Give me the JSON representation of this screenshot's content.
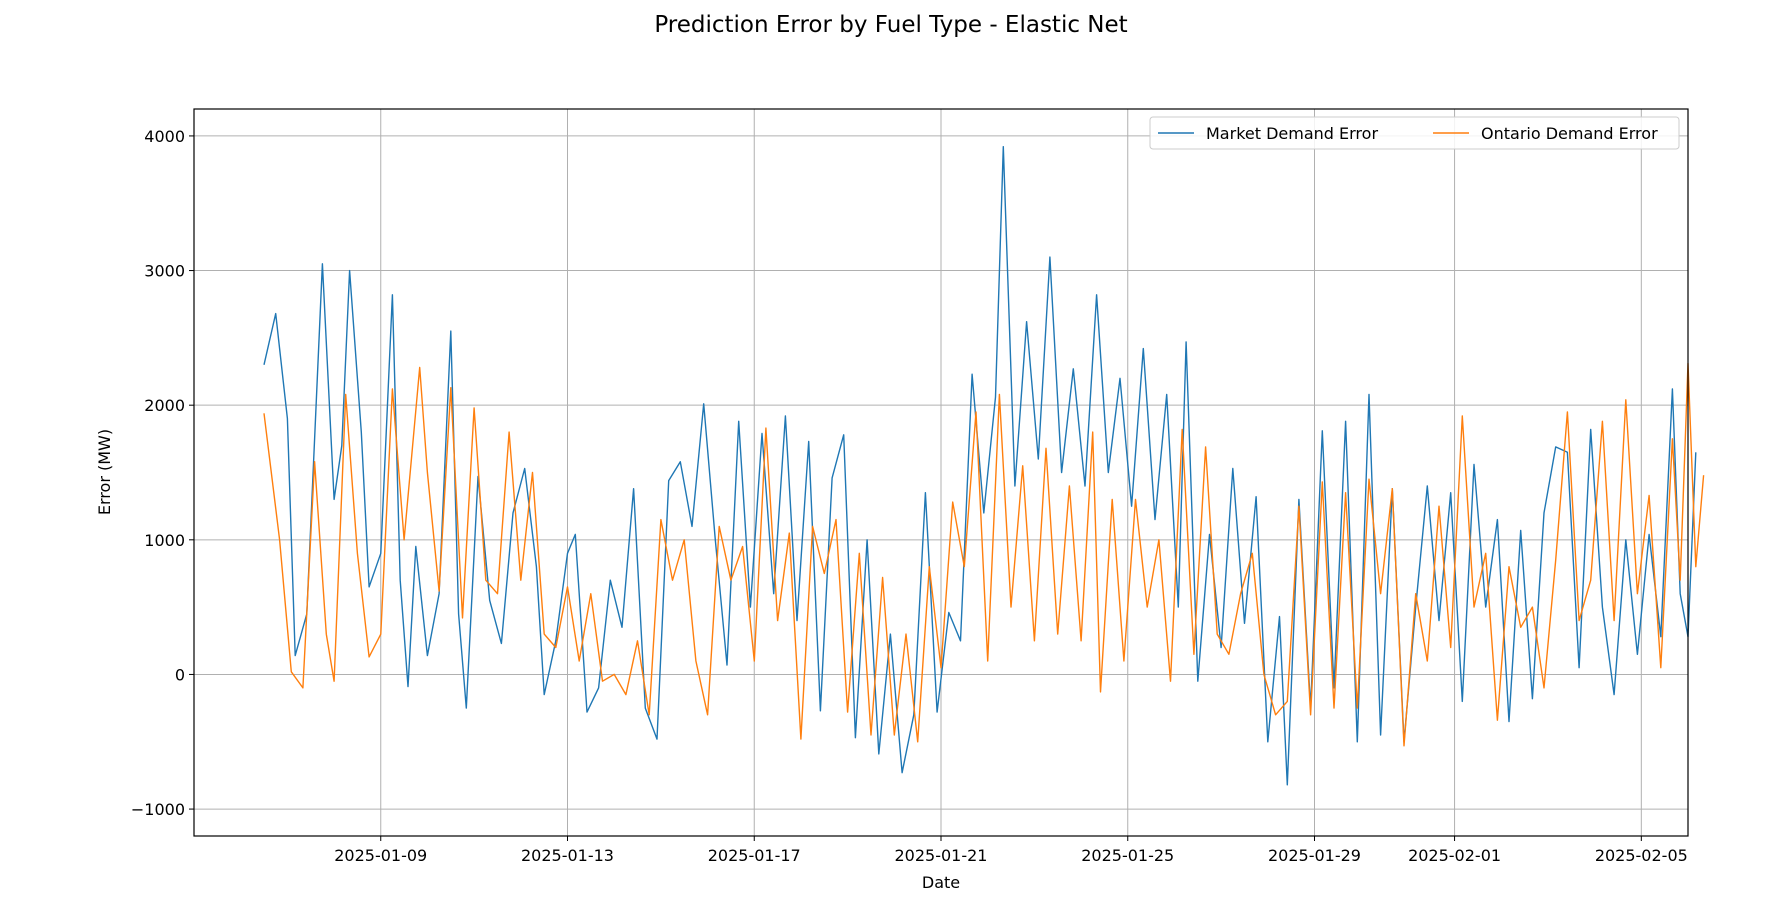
{
  "chart_data": {
    "type": "line",
    "title": "Prediction Error by Fuel Type - Elastic Net",
    "xlabel": "Date",
    "ylabel": "Error (MW)",
    "x_range": [
      "2025-01-05",
      "2025-02-06"
    ],
    "ylim": [
      -1000,
      4000
    ],
    "y_ticks": [
      -1000,
      0,
      1000,
      2000,
      3000,
      4000
    ],
    "x_ticks": [
      "2025-01-09",
      "2025-01-13",
      "2025-01-17",
      "2025-01-21",
      "2025-01-25",
      "2025-01-29",
      "2025-02-01",
      "2025-02-05"
    ],
    "grid": true,
    "legend": "top-right",
    "series": [
      {
        "name": "Market Demand Error",
        "color": "#1f77b4",
        "points": [
          [
            "2025-01-06 12:00",
            2300
          ],
          [
            "2025-01-06 18:00",
            2680
          ],
          [
            "2025-01-07 00:00",
            1900
          ],
          [
            "2025-01-07 04:00",
            140
          ],
          [
            "2025-01-07 10:00",
            450
          ],
          [
            "2025-01-07 18:00",
            3050
          ],
          [
            "2025-01-08 00:00",
            1300
          ],
          [
            "2025-01-08 04:00",
            1700
          ],
          [
            "2025-01-08 08:00",
            3000
          ],
          [
            "2025-01-08 14:00",
            1800
          ],
          [
            "2025-01-08 18:00",
            650
          ],
          [
            "2025-01-09 00:00",
            900
          ],
          [
            "2025-01-09 06:00",
            2820
          ],
          [
            "2025-01-09 10:00",
            700
          ],
          [
            "2025-01-09 14:00",
            -90
          ],
          [
            "2025-01-09 18:00",
            950
          ],
          [
            "2025-01-10 00:00",
            140
          ],
          [
            "2025-01-10 06:00",
            600
          ],
          [
            "2025-01-10 12:00",
            2550
          ],
          [
            "2025-01-10 16:00",
            450
          ],
          [
            "2025-01-10 20:00",
            -250
          ],
          [
            "2025-01-11 02:00",
            1470
          ],
          [
            "2025-01-11 08:00",
            550
          ],
          [
            "2025-01-11 14:00",
            230
          ],
          [
            "2025-01-11 20:00",
            1200
          ],
          [
            "2025-01-12 02:00",
            1530
          ],
          [
            "2025-01-12 08:00",
            800
          ],
          [
            "2025-01-12 12:00",
            -150
          ],
          [
            "2025-01-12 18:00",
            250
          ],
          [
            "2025-01-13 00:00",
            900
          ],
          [
            "2025-01-13 04:00",
            1040
          ],
          [
            "2025-01-13 10:00",
            -280
          ],
          [
            "2025-01-13 16:00",
            -100
          ],
          [
            "2025-01-13 22:00",
            700
          ],
          [
            "2025-01-14 04:00",
            350
          ],
          [
            "2025-01-14 10:00",
            1380
          ],
          [
            "2025-01-14 16:00",
            -250
          ],
          [
            "2025-01-14 22:00",
            -480
          ],
          [
            "2025-01-15 04:00",
            1440
          ],
          [
            "2025-01-15 10:00",
            1580
          ],
          [
            "2025-01-15 16:00",
            1100
          ],
          [
            "2025-01-15 22:00",
            2010
          ],
          [
            "2025-01-16 04:00",
            1000
          ],
          [
            "2025-01-16 10:00",
            70
          ],
          [
            "2025-01-16 16:00",
            1880
          ],
          [
            "2025-01-16 22:00",
            500
          ],
          [
            "2025-01-17 04:00",
            1790
          ],
          [
            "2025-01-17 10:00",
            600
          ],
          [
            "2025-01-17 16:00",
            1920
          ],
          [
            "2025-01-17 22:00",
            400
          ],
          [
            "2025-01-18 04:00",
            1730
          ],
          [
            "2025-01-18 10:00",
            -270
          ],
          [
            "2025-01-18 16:00",
            1460
          ],
          [
            "2025-01-18 22:00",
            1780
          ],
          [
            "2025-01-19 04:00",
            -470
          ],
          [
            "2025-01-19 10:00",
            1000
          ],
          [
            "2025-01-19 16:00",
            -590
          ],
          [
            "2025-01-19 22:00",
            300
          ],
          [
            "2025-01-20 04:00",
            -730
          ],
          [
            "2025-01-20 10:00",
            -300
          ],
          [
            "2025-01-20 16:00",
            1350
          ],
          [
            "2025-01-20 22:00",
            -280
          ],
          [
            "2025-01-21 04:00",
            460
          ],
          [
            "2025-01-21 10:00",
            250
          ],
          [
            "2025-01-21 16:00",
            2230
          ],
          [
            "2025-01-21 22:00",
            1200
          ],
          [
            "2025-01-22 04:00",
            2060
          ],
          [
            "2025-01-22 08:00",
            3920
          ],
          [
            "2025-01-22 14:00",
            1400
          ],
          [
            "2025-01-22 20:00",
            2620
          ],
          [
            "2025-01-23 02:00",
            1600
          ],
          [
            "2025-01-23 08:00",
            3100
          ],
          [
            "2025-01-23 14:00",
            1500
          ],
          [
            "2025-01-23 20:00",
            2270
          ],
          [
            "2025-01-24 02:00",
            1400
          ],
          [
            "2025-01-24 08:00",
            2820
          ],
          [
            "2025-01-24 14:00",
            1500
          ],
          [
            "2025-01-24 20:00",
            2200
          ],
          [
            "2025-01-25 02:00",
            1250
          ],
          [
            "2025-01-25 08:00",
            2420
          ],
          [
            "2025-01-25 14:00",
            1150
          ],
          [
            "2025-01-25 20:00",
            2080
          ],
          [
            "2025-01-26 02:00",
            500
          ],
          [
            "2025-01-26 06:00",
            2470
          ],
          [
            "2025-01-26 12:00",
            -50
          ],
          [
            "2025-01-26 18:00",
            1040
          ],
          [
            "2025-01-27 00:00",
            200
          ],
          [
            "2025-01-27 06:00",
            1530
          ],
          [
            "2025-01-27 12:00",
            380
          ],
          [
            "2025-01-27 18:00",
            1320
          ],
          [
            "2025-01-28 00:00",
            -500
          ],
          [
            "2025-01-28 06:00",
            430
          ],
          [
            "2025-01-28 10:00",
            -820
          ],
          [
            "2025-01-28 16:00",
            1300
          ],
          [
            "2025-01-28 22:00",
            -250
          ],
          [
            "2025-01-29 04:00",
            1810
          ],
          [
            "2025-01-29 10:00",
            -100
          ],
          [
            "2025-01-29 16:00",
            1880
          ],
          [
            "2025-01-29 22:00",
            -500
          ],
          [
            "2025-01-30 04:00",
            2080
          ],
          [
            "2025-01-30 10:00",
            -450
          ],
          [
            "2025-01-30 16:00",
            1380
          ],
          [
            "2025-01-30 22:00",
            -500
          ],
          [
            "2025-01-31 04:00",
            500
          ],
          [
            "2025-01-31 10:00",
            1400
          ],
          [
            "2025-01-31 16:00",
            400
          ],
          [
            "2025-01-31 22:00",
            1350
          ],
          [
            "2025-02-01 04:00",
            -200
          ],
          [
            "2025-02-01 10:00",
            1560
          ],
          [
            "2025-02-01 16:00",
            500
          ],
          [
            "2025-02-01 22:00",
            1150
          ],
          [
            "2025-02-02 04:00",
            -350
          ],
          [
            "2025-02-02 10:00",
            1070
          ],
          [
            "2025-02-02 16:00",
            -180
          ],
          [
            "2025-02-02 22:00",
            1200
          ],
          [
            "2025-02-03 04:00",
            1690
          ],
          [
            "2025-02-03 10:00",
            1650
          ],
          [
            "2025-02-03 16:00",
            50
          ],
          [
            "2025-02-03 22:00",
            1820
          ],
          [
            "2025-02-04 04:00",
            500
          ],
          [
            "2025-02-04 10:00",
            -150
          ],
          [
            "2025-02-04 16:00",
            1000
          ],
          [
            "2025-02-04 22:00",
            150
          ],
          [
            "2025-02-05 04:00",
            1040
          ],
          [
            "2025-02-05 10:00",
            280
          ],
          [
            "2025-02-05 16:00",
            2120
          ],
          [
            "2025-02-05 20:00",
            600
          ],
          [
            "2025-02-06 00:00",
            280
          ],
          [
            "2025-02-06 04:00",
            1650
          ]
        ]
      },
      {
        "name": "Ontario Demand Error",
        "color": "#ff7f0e",
        "points": [
          [
            "2025-01-06 12:00",
            1940
          ],
          [
            "2025-01-06 20:00",
            1000
          ],
          [
            "2025-01-07 02:00",
            20
          ],
          [
            "2025-01-07 08:00",
            -100
          ],
          [
            "2025-01-07 14:00",
            1580
          ],
          [
            "2025-01-07 20:00",
            300
          ],
          [
            "2025-01-08 00:00",
            -50
          ],
          [
            "2025-01-08 06:00",
            2080
          ],
          [
            "2025-01-08 12:00",
            900
          ],
          [
            "2025-01-08 18:00",
            130
          ],
          [
            "2025-01-09 00:00",
            300
          ],
          [
            "2025-01-09 06:00",
            2120
          ],
          [
            "2025-01-09 12:00",
            1000
          ],
          [
            "2025-01-09 20:00",
            2280
          ],
          [
            "2025-01-10 00:00",
            1500
          ],
          [
            "2025-01-10 06:00",
            620
          ],
          [
            "2025-01-10 12:00",
            2130
          ],
          [
            "2025-01-10 18:00",
            420
          ],
          [
            "2025-01-11 00:00",
            1980
          ],
          [
            "2025-01-11 06:00",
            700
          ],
          [
            "2025-01-11 12:00",
            600
          ],
          [
            "2025-01-11 18:00",
            1800
          ],
          [
            "2025-01-12 00:00",
            700
          ],
          [
            "2025-01-12 06:00",
            1500
          ],
          [
            "2025-01-12 12:00",
            300
          ],
          [
            "2025-01-12 18:00",
            200
          ],
          [
            "2025-01-13 00:00",
            650
          ],
          [
            "2025-01-13 06:00",
            100
          ],
          [
            "2025-01-13 12:00",
            600
          ],
          [
            "2025-01-13 18:00",
            -50
          ],
          [
            "2025-01-14 00:00",
            0
          ],
          [
            "2025-01-14 06:00",
            -150
          ],
          [
            "2025-01-14 12:00",
            250
          ],
          [
            "2025-01-14 18:00",
            -300
          ],
          [
            "2025-01-15 00:00",
            1150
          ],
          [
            "2025-01-15 06:00",
            700
          ],
          [
            "2025-01-15 12:00",
            1000
          ],
          [
            "2025-01-15 18:00",
            100
          ],
          [
            "2025-01-16 00:00",
            -300
          ],
          [
            "2025-01-16 06:00",
            1100
          ],
          [
            "2025-01-16 12:00",
            700
          ],
          [
            "2025-01-16 18:00",
            950
          ],
          [
            "2025-01-17 00:00",
            100
          ],
          [
            "2025-01-17 06:00",
            1830
          ],
          [
            "2025-01-17 12:00",
            400
          ],
          [
            "2025-01-17 18:00",
            1050
          ],
          [
            "2025-01-18 00:00",
            -480
          ],
          [
            "2025-01-18 06:00",
            1100
          ],
          [
            "2025-01-18 12:00",
            750
          ],
          [
            "2025-01-18 18:00",
            1150
          ],
          [
            "2025-01-19 00:00",
            -280
          ],
          [
            "2025-01-19 06:00",
            900
          ],
          [
            "2025-01-19 12:00",
            -450
          ],
          [
            "2025-01-19 18:00",
            720
          ],
          [
            "2025-01-20 00:00",
            -450
          ],
          [
            "2025-01-20 06:00",
            300
          ],
          [
            "2025-01-20 12:00",
            -500
          ],
          [
            "2025-01-20 18:00",
            800
          ],
          [
            "2025-01-21 00:00",
            50
          ],
          [
            "2025-01-21 06:00",
            1280
          ],
          [
            "2025-01-21 12:00",
            800
          ],
          [
            "2025-01-21 18:00",
            1950
          ],
          [
            "2025-01-22 00:00",
            100
          ],
          [
            "2025-01-22 06:00",
            2080
          ],
          [
            "2025-01-22 12:00",
            500
          ],
          [
            "2025-01-22 18:00",
            1550
          ],
          [
            "2025-01-23 00:00",
            250
          ],
          [
            "2025-01-23 06:00",
            1680
          ],
          [
            "2025-01-23 12:00",
            300
          ],
          [
            "2025-01-23 18:00",
            1400
          ],
          [
            "2025-01-24 00:00",
            250
          ],
          [
            "2025-01-24 06:00",
            1800
          ],
          [
            "2025-01-24 10:00",
            -130
          ],
          [
            "2025-01-24 16:00",
            1300
          ],
          [
            "2025-01-24 22:00",
            100
          ],
          [
            "2025-01-25 04:00",
            1300
          ],
          [
            "2025-01-25 10:00",
            500
          ],
          [
            "2025-01-25 16:00",
            1000
          ],
          [
            "2025-01-25 22:00",
            -50
          ],
          [
            "2025-01-26 04:00",
            1820
          ],
          [
            "2025-01-26 10:00",
            150
          ],
          [
            "2025-01-26 16:00",
            1690
          ],
          [
            "2025-01-26 22:00",
            300
          ],
          [
            "2025-01-27 04:00",
            150
          ],
          [
            "2025-01-27 10:00",
            600
          ],
          [
            "2025-01-27 16:00",
            900
          ],
          [
            "2025-01-27 22:00",
            0
          ],
          [
            "2025-01-28 04:00",
            -300
          ],
          [
            "2025-01-28 10:00",
            -200
          ],
          [
            "2025-01-28 16:00",
            1250
          ],
          [
            "2025-01-28 22:00",
            -300
          ],
          [
            "2025-01-29 04:00",
            1430
          ],
          [
            "2025-01-29 10:00",
            -250
          ],
          [
            "2025-01-29 16:00",
            1350
          ],
          [
            "2025-01-29 22:00",
            -250
          ],
          [
            "2025-01-30 04:00",
            1450
          ],
          [
            "2025-01-30 10:00",
            600
          ],
          [
            "2025-01-30 16:00",
            1380
          ],
          [
            "2025-01-30 22:00",
            -530
          ],
          [
            "2025-01-31 04:00",
            600
          ],
          [
            "2025-01-31 10:00",
            100
          ],
          [
            "2025-01-31 16:00",
            1250
          ],
          [
            "2025-01-31 22:00",
            200
          ],
          [
            "2025-02-01 04:00",
            1920
          ],
          [
            "2025-02-01 10:00",
            500
          ],
          [
            "2025-02-01 16:00",
            900
          ],
          [
            "2025-02-01 22:00",
            -340
          ],
          [
            "2025-02-02 04:00",
            800
          ],
          [
            "2025-02-02 10:00",
            350
          ],
          [
            "2025-02-02 16:00",
            500
          ],
          [
            "2025-02-02 22:00",
            -100
          ],
          [
            "2025-02-03 04:00",
            850
          ],
          [
            "2025-02-03 10:00",
            1950
          ],
          [
            "2025-02-03 16:00",
            400
          ],
          [
            "2025-02-03 22:00",
            700
          ],
          [
            "2025-02-04 04:00",
            1880
          ],
          [
            "2025-02-04 10:00",
            400
          ],
          [
            "2025-02-04 16:00",
            2040
          ],
          [
            "2025-02-04 22:00",
            600
          ],
          [
            "2025-02-05 04:00",
            1330
          ],
          [
            "2025-02-05 10:00",
            50
          ],
          [
            "2025-02-05 16:00",
            1750
          ],
          [
            "2025-02-05 20:00",
            700
          ],
          [
            "2025-02-06 00:00",
            2310
          ],
          [
            "2025-02-06 04:00",
            800
          ],
          [
            "2025-02-06 08:00",
            1480
          ]
        ]
      }
    ]
  }
}
